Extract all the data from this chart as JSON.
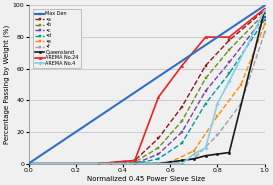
{
  "xlabel": "Normalized 0.45 Power Sieve Size",
  "ylabel": "Percentage Passing by Weight (%)",
  "xlim": [
    0,
    1.0
  ],
  "ylim": [
    0,
    100
  ],
  "xticks": [
    0,
    0.2,
    0.4,
    0.6,
    0.8,
    1.0
  ],
  "yticks": [
    0,
    20,
    40,
    60,
    80,
    100
  ],
  "series": {
    "Max Den": {
      "x": [
        0.0,
        1.0
      ],
      "y": [
        0,
        100
      ],
      "color": "#3070C0",
      "lw": 1.5,
      "ls": "-",
      "marker": "s",
      "ms": 2.0
    },
    "a": {
      "x": [
        0.3,
        0.45,
        0.55,
        0.65,
        0.75,
        0.85,
        1.0
      ],
      "y": [
        0,
        2,
        16,
        36,
        62,
        78,
        97
      ],
      "color": "#8B1A1A",
      "lw": 1.0,
      "ls": "--",
      "marker": "s",
      "ms": 1.8
    },
    "b": {
      "x": [
        0.3,
        0.45,
        0.55,
        0.65,
        0.75,
        0.85,
        1.0
      ],
      "y": [
        0,
        1,
        10,
        27,
        54,
        72,
        95
      ],
      "color": "#6B8E23",
      "lw": 1.0,
      "ls": "--",
      "marker": "s",
      "ms": 1.8
    },
    "c": {
      "x": [
        0.3,
        0.45,
        0.55,
        0.65,
        0.75,
        0.85,
        1.0
      ],
      "y": [
        0,
        0,
        6,
        20,
        46,
        64,
        93
      ],
      "color": "#7B3FA0",
      "lw": 1.0,
      "ls": "--",
      "marker": "s",
      "ms": 1.8
    },
    "d": {
      "x": [
        0.35,
        0.45,
        0.55,
        0.65,
        0.75,
        0.85,
        1.0
      ],
      "y": [
        0,
        0,
        3,
        13,
        38,
        57,
        91
      ],
      "color": "#009999",
      "lw": 1.0,
      "ls": "--",
      "marker": "s",
      "ms": 1.8
    },
    "e": {
      "x": [
        0.4,
        0.5,
        0.6,
        0.7,
        0.8,
        0.9,
        1.0
      ],
      "y": [
        0,
        0,
        1,
        8,
        30,
        50,
        88
      ],
      "color": "#FF8C00",
      "lw": 1.0,
      "ls": "--",
      "marker": "s",
      "ms": 1.8
    },
    "f": {
      "x": [
        0.4,
        0.5,
        0.6,
        0.7,
        0.8,
        0.9,
        1.0
      ],
      "y": [
        0,
        0,
        0,
        3,
        18,
        38,
        83
      ],
      "color": "#A0A0A0",
      "lw": 1.0,
      "ls": "--",
      "marker": "s",
      "ms": 1.8
    },
    "Queensland": {
      "x": [
        0.0,
        0.55,
        0.6,
        0.65,
        0.7,
        0.75,
        0.8,
        0.85,
        1.0
      ],
      "y": [
        0,
        0,
        1,
        2,
        3,
        5,
        6,
        7,
        97
      ],
      "color": "#1A1A1A",
      "lw": 1.2,
      "ls": "-",
      "marker": "o",
      "ms": 1.8
    },
    "AREMA No.24": {
      "x": [
        0.0,
        0.3,
        0.45,
        0.55,
        0.65,
        0.75,
        0.85,
        1.0
      ],
      "y": [
        0,
        0,
        2,
        42,
        62,
        80,
        80,
        98
      ],
      "color": "#EE2020",
      "lw": 1.2,
      "ls": "-",
      "marker": "^",
      "ms": 1.8
    },
    "AREMA No.4": {
      "x": [
        0.0,
        0.55,
        0.65,
        0.7,
        0.75,
        0.8,
        0.85,
        1.0
      ],
      "y": [
        0,
        0,
        0,
        6,
        10,
        38,
        52,
        97
      ],
      "color": "#87CEEB",
      "lw": 1.2,
      "ls": "-",
      "marker": "D",
      "ms": 1.8
    }
  },
  "legend_labels": {
    "Max Den": "Max Den",
    "a": "•a",
    "b": "•b",
    "c": "•c",
    "d": "•d",
    "e": "•e",
    "f": "•f",
    "Queensland": "Queensland",
    "AREMA No.24": "AREMA No.24",
    "AREMA No.4": "AREMA No.4"
  }
}
